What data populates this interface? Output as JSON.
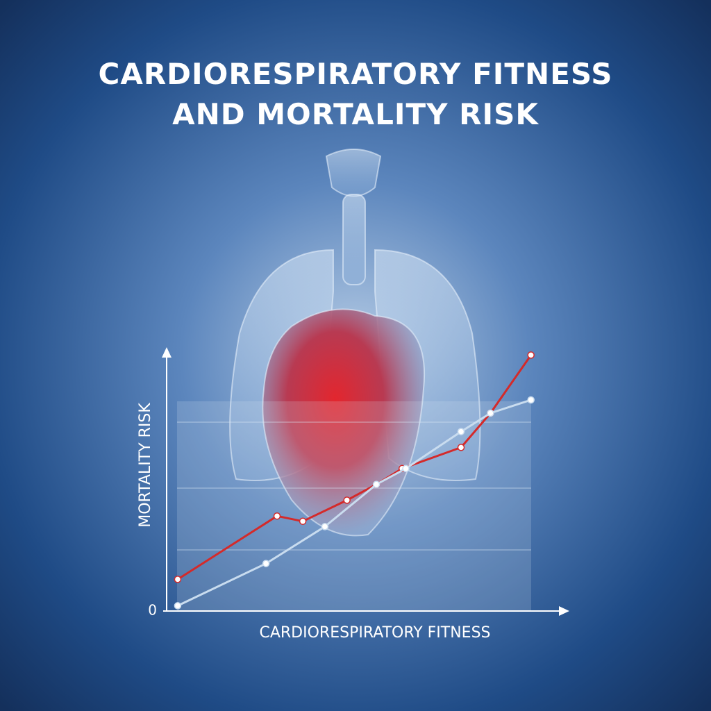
{
  "chart_data": {
    "type": "line",
    "title": "CARDIORESPIRATORY FITNESS AND MORTALITY RISK",
    "x_label": "CARDIORESPIRATORY FITNESS",
    "y_label": "MORTALITY RISK",
    "xlim": [
      0,
      100
    ],
    "ylim": [
      0,
      100
    ],
    "yticks": [
      0
    ],
    "series": [
      {
        "color": "#d42a2a",
        "x": [
          3,
          30,
          37,
          49,
          57,
          64,
          80,
          88,
          99
        ],
        "values": [
          12,
          36,
          34,
          42,
          48,
          54,
          62,
          75,
          97
        ]
      },
      {
        "color": "#c9dcef",
        "x": [
          3,
          27,
          43,
          57,
          65,
          80,
          88,
          99
        ],
        "values": [
          2,
          18,
          32,
          48,
          54,
          68,
          75,
          80
        ]
      }
    ]
  }
}
